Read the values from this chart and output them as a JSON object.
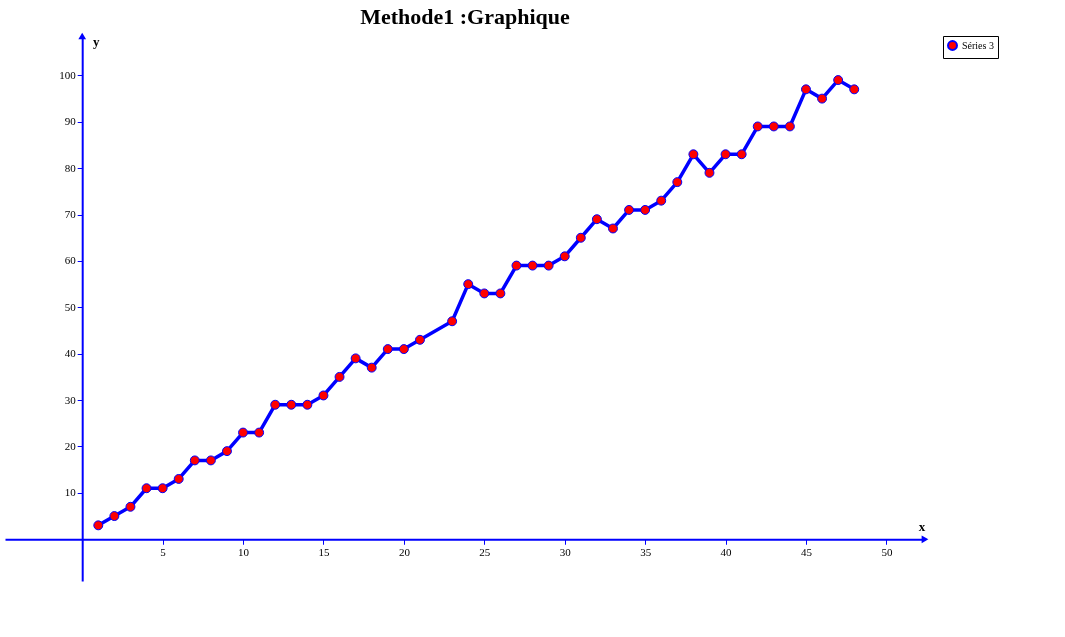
{
  "chart_data": {
    "type": "line",
    "title": "Methode1 :Graphique",
    "xlabel": "x",
    "ylabel": "y",
    "x": [
      1,
      2,
      3,
      4,
      5,
      6,
      7,
      8,
      9,
      10,
      11,
      12,
      13,
      14,
      15,
      16,
      17,
      18,
      19,
      20,
      21,
      23,
      24,
      25,
      26,
      27,
      28,
      29,
      30,
      31,
      32,
      33,
      34,
      35,
      36,
      37,
      38,
      39,
      40,
      41,
      42,
      43,
      44,
      45,
      46,
      47,
      48
    ],
    "series": [
      {
        "name": "Séries 3",
        "color": "#0000ff",
        "values": [
          3,
          5,
          7,
          11,
          11,
          13,
          17,
          17,
          19,
          23,
          23,
          29,
          29,
          29,
          31,
          35,
          39,
          37,
          41,
          41,
          43,
          47,
          55,
          53,
          53,
          59,
          59,
          59,
          61,
          65,
          69,
          67,
          71,
          71,
          73,
          77,
          83,
          79,
          83,
          83,
          89,
          89,
          89,
          97,
          95,
          99,
          97
        ]
      }
    ],
    "xlim": [
      -4.8,
      52.4
    ],
    "ylim": [
      -9,
      108.5
    ],
    "xticks": [
      5,
      10,
      15,
      20,
      25,
      30,
      35,
      40,
      45,
      50
    ],
    "yticks": [
      10,
      20,
      30,
      40,
      50,
      60,
      70,
      80,
      90,
      100
    ],
    "grid": false,
    "legend": "top right",
    "marker": "circle",
    "line_style": "solid"
  }
}
